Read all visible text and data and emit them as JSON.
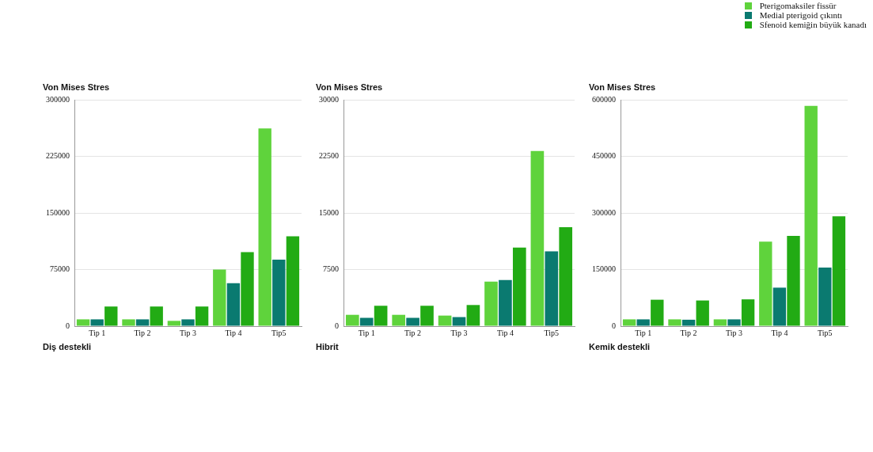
{
  "chart_data": [
    {
      "type": "bar",
      "ylabel": "Von Mises Stres",
      "xlabel": "Diş destekli",
      "categories": [
        "Tip 1",
        "Tip 2",
        "Tip 3",
        "Tip 4",
        "Tip5"
      ],
      "series": [
        {
          "color": "#5fd33c",
          "values": [
            9000,
            9000,
            7000,
            75000,
            262000
          ]
        },
        {
          "color": "#0a7a70",
          "values": [
            9000,
            9000,
            9000,
            57000,
            88000
          ]
        },
        {
          "color": "#22ab14",
          "values": [
            26000,
            26000,
            26000,
            98000,
            119000
          ]
        }
      ],
      "ylim": [
        0,
        300000
      ],
      "yticks": [
        0,
        75000,
        150000,
        225000,
        300000
      ],
      "grid": "y"
    },
    {
      "type": "bar",
      "ylabel": "Von Mises Stres",
      "xlabel": "Hibrit",
      "categories": [
        "Tip 1",
        "Tip 2",
        "Tip 3",
        "Tip 4",
        "Tip5"
      ],
      "series": [
        {
          "color": "#5fd33c",
          "values": [
            1500,
            1500,
            1400,
            5900,
            23200
          ]
        },
        {
          "color": "#0a7a70",
          "values": [
            1100,
            1100,
            1200,
            6100,
            9900
          ]
        },
        {
          "color": "#22ab14",
          "values": [
            2700,
            2700,
            2800,
            10400,
            13100
          ]
        }
      ],
      "ylim": [
        0,
        30000
      ],
      "yticks": [
        0,
        7500,
        15000,
        22500,
        30000
      ],
      "grid": "y"
    },
    {
      "type": "bar",
      "ylabel": "Von Mises Stres",
      "xlabel": "Kemik destekli",
      "categories": [
        "Tip 1",
        "Tip 2",
        "Tip 3",
        "Tip 4",
        "Tip5"
      ],
      "series": [
        {
          "name": "Pterigomaksiler fissür",
          "color": "#5fd33c",
          "values": [
            18000,
            18000,
            18000,
            224000,
            584000
          ]
        },
        {
          "name": "Medial pterigoid çıkıntı",
          "color": "#0a7a70",
          "values": [
            18000,
            17000,
            18000,
            102000,
            155000
          ]
        },
        {
          "name": "Sfenoid kemiğin büyük kanadı",
          "color": "#22ab14",
          "values": [
            70000,
            68000,
            71000,
            239000,
            291000
          ]
        }
      ],
      "ylim": [
        0,
        600000
      ],
      "yticks": [
        0,
        150000,
        300000,
        450000,
        600000
      ],
      "grid": "y",
      "legend": "top right"
    }
  ]
}
